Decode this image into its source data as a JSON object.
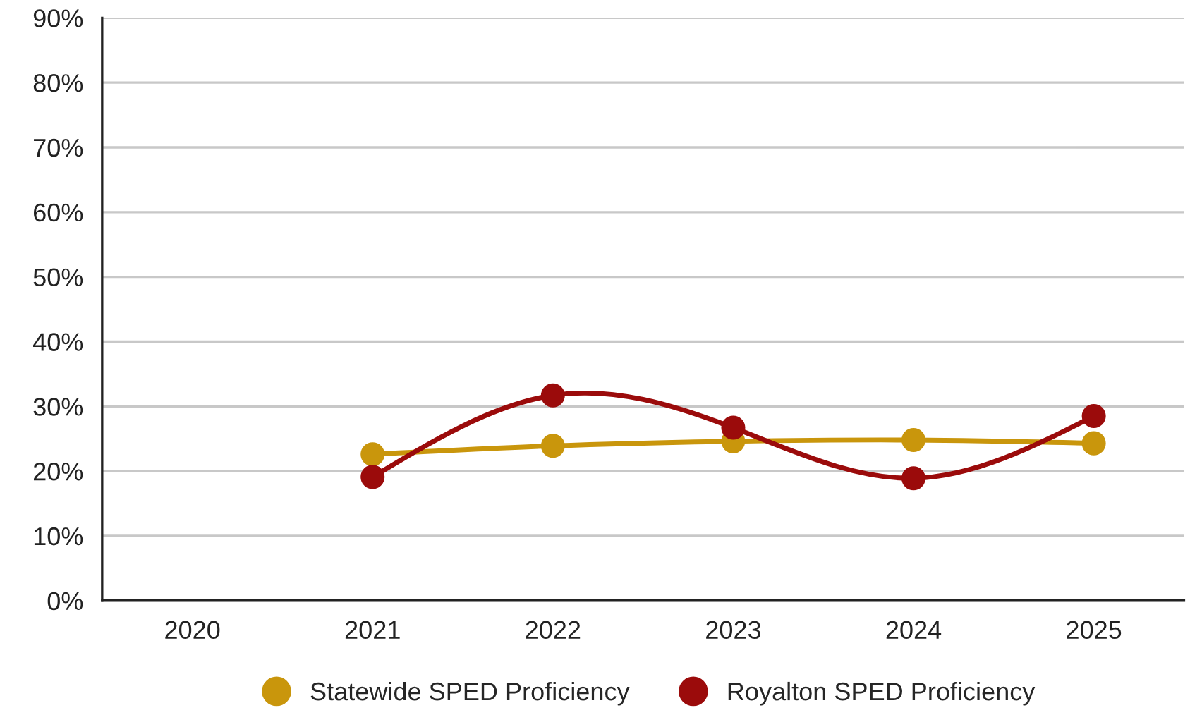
{
  "chart_data": {
    "type": "line",
    "categories": [
      "2020",
      "2021",
      "2022",
      "2023",
      "2024",
      "2025"
    ],
    "series": [
      {
        "name": "Statewide SPED Proficiency",
        "color": "#c9960c",
        "values": [
          null,
          22.6,
          23.9,
          24.6,
          24.8,
          24.3
        ]
      },
      {
        "name": "Royalton SPED Proficiency",
        "color": "#9b0b0b",
        "values": [
          null,
          19.1,
          31.7,
          26.7,
          18.9,
          28.5
        ]
      }
    ],
    "ylim": [
      0,
      90
    ],
    "yticks": [
      {
        "value": 0,
        "label": "0%"
      },
      {
        "value": 10,
        "label": "10%"
      },
      {
        "value": 20,
        "label": "20%"
      },
      {
        "value": 30,
        "label": "30%"
      },
      {
        "value": 40,
        "label": "40%"
      },
      {
        "value": 50,
        "label": "50%"
      },
      {
        "value": 60,
        "label": "60%"
      },
      {
        "value": 70,
        "label": "70%"
      },
      {
        "value": 80,
        "label": "80%"
      },
      {
        "value": 90,
        "label": "90%"
      }
    ],
    "grid": "y",
    "legend": "bottom",
    "marker": "circle",
    "line_style": "solid"
  }
}
